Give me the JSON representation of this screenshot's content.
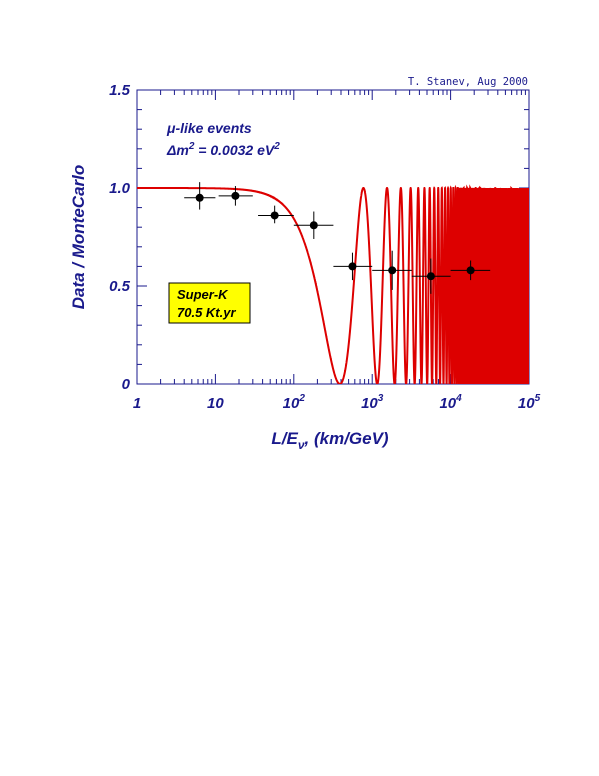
{
  "chart_data": {
    "type": "scatter",
    "credit": "T. Stanev, Aug 2000",
    "ylabel": "Data / MonteCarlo",
    "xlabel": {
      "prefix": "L/E",
      "sub": "ν",
      "suffix": ",  (km/GeV)"
    },
    "xscale": "log",
    "xlim": [
      1,
      100000
    ],
    "ylim": [
      0,
      1.5
    ],
    "yticks": [
      "0",
      "0.5",
      "1.0",
      "1.5"
    ],
    "xticks": [
      {
        "base": "1",
        "exp": ""
      },
      {
        "base": "10",
        "exp": ""
      },
      {
        "base": "10",
        "exp": "2"
      },
      {
        "base": "10",
        "exp": "3"
      },
      {
        "base": "10",
        "exp": "4"
      },
      {
        "base": "10",
        "exp": "5"
      }
    ],
    "annotation": {
      "line1": "μ-like events",
      "line2_prefix": "Δm",
      "line2_sup": "2",
      "line2_mid": " = 0.0032 eV",
      "line2_sup2": "2"
    },
    "box": {
      "line1": "Super-K",
      "line2": "70.5 Kt.yr",
      "color": "#ffff00"
    },
    "curve": {
      "color": "#dd0000",
      "sin2_2theta": 1.0,
      "dm2": 0.0032,
      "label": ""
    },
    "points": [
      {
        "x": 6.3,
        "y": 0.95,
        "xlo": 4.0,
        "xhi": 10.0,
        "ylo": 0.89,
        "yhi": 1.03
      },
      {
        "x": 18.0,
        "y": 0.96,
        "xlo": 11.0,
        "xhi": 30.0,
        "ylo": 0.91,
        "yhi": 1.01
      },
      {
        "x": 57.0,
        "y": 0.86,
        "xlo": 35.0,
        "xhi": 100.0,
        "ylo": 0.82,
        "yhi": 0.91
      },
      {
        "x": 180.0,
        "y": 0.81,
        "xlo": 100.0,
        "xhi": 320.0,
        "ylo": 0.74,
        "yhi": 0.88
      },
      {
        "x": 560.0,
        "y": 0.6,
        "xlo": 320.0,
        "xhi": 1000.0,
        "ylo": 0.53,
        "yhi": 0.67
      },
      {
        "x": 1800.0,
        "y": 0.58,
        "xlo": 1000.0,
        "xhi": 3200.0,
        "ylo": 0.48,
        "yhi": 0.68
      },
      {
        "x": 5600.0,
        "y": 0.55,
        "xlo": 3200.0,
        "xhi": 10000.0,
        "ylo": 0.46,
        "yhi": 0.64
      },
      {
        "x": 18000.0,
        "y": 0.58,
        "xlo": 10000.0,
        "xhi": 32000.0,
        "ylo": 0.53,
        "yhi": 0.63
      }
    ],
    "point_color": "#000000",
    "axis_color": "#1a1a8c",
    "grid": false
  }
}
